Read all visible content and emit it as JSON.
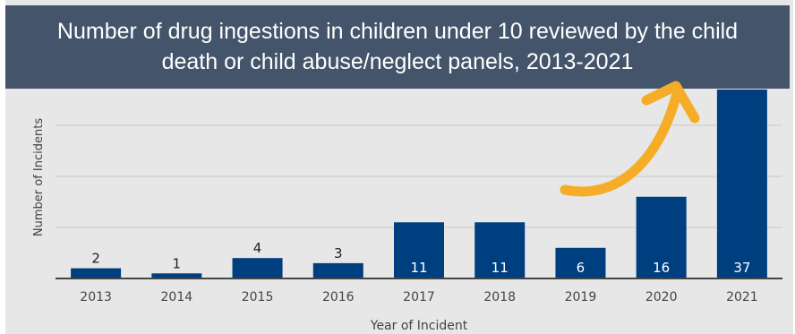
{
  "chart_data": {
    "type": "bar",
    "title": "Number of drug ingestions in children under 10 reviewed by the child death or child abuse/neglect panels, 2013-2021",
    "xlabel": "Year of Incident",
    "ylabel": "Number of Incidents",
    "categories": [
      "2013",
      "2014",
      "2015",
      "2016",
      "2017",
      "2018",
      "2019",
      "2020",
      "2021"
    ],
    "values": [
      2,
      1,
      4,
      3,
      11,
      11,
      6,
      16,
      37
    ],
    "ylim": [
      0,
      37
    ],
    "grid": true,
    "legend": "none",
    "annotations": [
      "trend-arrow"
    ],
    "colors": {
      "bar": "#003f7f",
      "arrow": "#f5ad27",
      "banner": "#44546a",
      "background": "#e7e7e7"
    }
  }
}
